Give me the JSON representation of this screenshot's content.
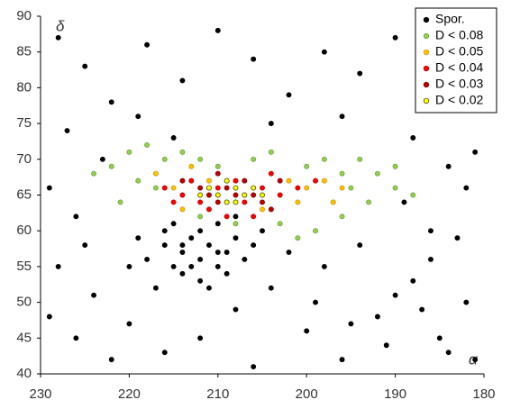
{
  "chart_data": {
    "type": "scatter",
    "x_label": "α",
    "y_label": "δ",
    "xlim": [
      230,
      180
    ],
    "xticks": [
      230,
      220,
      210,
      200,
      190,
      180
    ],
    "ylim": [
      40,
      90
    ],
    "yticks": [
      40,
      45,
      50,
      55,
      60,
      65,
      70,
      75,
      80,
      85,
      90
    ],
    "grid": false,
    "legend": "upper right",
    "series": [
      {
        "name": "Spor.",
        "color": "#000000",
        "edge": "#000000",
        "x": [
          228,
          225,
          222,
          218,
          214,
          210,
          206,
          202,
          198,
          194,
          190,
          186,
          183,
          181,
          227,
          223,
          219,
          215,
          204,
          196,
          188,
          184,
          181,
          229,
          226,
          189,
          186,
          182,
          228,
          224,
          220,
          216,
          212,
          208,
          204,
          200,
          196,
          192,
          188,
          185,
          182,
          181,
          226,
          222,
          206,
          198,
          194,
          190,
          186,
          183,
          229,
          225,
          202,
          199,
          195,
          191,
          187,
          184,
          218,
          216,
          215,
          214,
          213,
          212,
          211,
          210,
          209,
          208,
          207,
          214,
          212,
          216,
          210,
          208,
          206,
          217,
          211,
          219,
          215,
          213,
          209,
          205,
          220,
          212,
          214,
          210
        ],
        "values": [
          87,
          83,
          78,
          86,
          81,
          88,
          84,
          79,
          85,
          82,
          87,
          80,
          84,
          77,
          74,
          70,
          76,
          73,
          75,
          76,
          73,
          69,
          71,
          66,
          62,
          64,
          60,
          66,
          55,
          51,
          47,
          43,
          45,
          49,
          52,
          46,
          42,
          48,
          53,
          45,
          50,
          42,
          45,
          42,
          41,
          55,
          58,
          51,
          56,
          59,
          48,
          58,
          57,
          50,
          47,
          44,
          49,
          43,
          56,
          58,
          55,
          57,
          59,
          56,
          58,
          55,
          57,
          59,
          56,
          54,
          53,
          60,
          61,
          62,
          58,
          52,
          52,
          59,
          61,
          55,
          54,
          60,
          55,
          60,
          58,
          57
        ]
      },
      {
        "name": "D < 0.08",
        "color": "#92d050",
        "edge": "#6a9a38",
        "x": [
          222,
          220,
          218,
          216,
          214,
          212,
          210,
          206,
          204,
          200,
          198,
          196,
          194,
          192,
          190,
          188,
          193,
          196,
          199,
          201,
          208,
          212,
          217,
          219,
          221,
          190,
          195,
          197,
          224,
          203
        ],
        "values": [
          69,
          71,
          72,
          70,
          71,
          70,
          69,
          70,
          71,
          69,
          70,
          68,
          70,
          68,
          66,
          65,
          64,
          62,
          60,
          59,
          61,
          62,
          66,
          67,
          64,
          69,
          66,
          64,
          68,
          61
        ]
      },
      {
        "name": "D < 0.05",
        "color": "#ffc000",
        "edge": "#c89200",
        "x": [
          217,
          215,
          213,
          211,
          202,
          200,
          198,
          197,
          196,
          214,
          205,
          201
        ],
        "values": [
          68,
          66,
          69,
          67,
          67,
          66,
          67,
          64,
          66,
          63,
          63,
          64
        ]
      },
      {
        "name": "D < 0.04",
        "color": "#ff0000",
        "edge": "#b00000",
        "x": [
          216,
          214,
          213,
          212,
          210,
          208,
          207,
          205,
          204,
          203,
          201,
          199,
          211,
          209,
          206,
          215
        ],
        "values": [
          66,
          65,
          67,
          64,
          66,
          67,
          64,
          66,
          68,
          65,
          66,
          67,
          63,
          62,
          62,
          64
        ]
      },
      {
        "name": "D < 0.03",
        "color": "#c00000",
        "edge": "#700000",
        "x": [
          212,
          210,
          209,
          208,
          207,
          206,
          205,
          204,
          211,
          203,
          210,
          214
        ],
        "values": [
          66,
          64,
          66,
          65,
          67,
          65,
          64,
          63,
          65,
          67,
          68,
          67
        ]
      },
      {
        "name": "D < 0.02",
        "color": "#ffff00",
        "edge": "#333300",
        "x": [
          211,
          210,
          209,
          208,
          207,
          206,
          209,
          208,
          212,
          205
        ],
        "values": [
          66,
          65,
          64,
          66,
          65,
          66,
          67,
          64,
          65,
          65
        ]
      }
    ]
  }
}
